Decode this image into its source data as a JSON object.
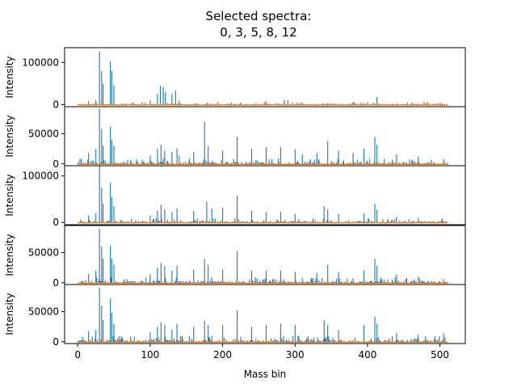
{
  "chart_data": {
    "type": "bar",
    "title_lines": [
      "Selected spectra:",
      "0, 3, 5, 8, 12"
    ],
    "xlabel": "Mass bin",
    "ylabel": "Intensity",
    "xlim": [
      -18,
      535
    ],
    "xticks": [
      0,
      100,
      200,
      300,
      400,
      500
    ],
    "n_bins": 512,
    "colors": {
      "bars": "#1f77b4",
      "baseline": "#ff7f0e",
      "axes": "#000000"
    },
    "panels": [
      {
        "spectrum": 0,
        "ylim": [
          -5000,
          135000
        ],
        "yticks": [
          0,
          100000
        ],
        "peaks": [
          [
            30,
            126000
          ],
          [
            33,
            80000
          ],
          [
            35,
            50000
          ],
          [
            45,
            103000
          ],
          [
            47,
            80000
          ],
          [
            50,
            45000
          ],
          [
            15,
            8000
          ],
          [
            25,
            10000
          ],
          [
            100,
            10000
          ],
          [
            110,
            25000
          ],
          [
            114,
            45000
          ],
          [
            118,
            42000
          ],
          [
            121,
            30000
          ],
          [
            130,
            25000
          ],
          [
            135,
            33000
          ],
          [
            140,
            10000
          ],
          [
            260,
            8000
          ],
          [
            285,
            12000
          ],
          [
            290,
            10000
          ],
          [
            310,
            5000
          ],
          [
            413,
            18000
          ]
        ],
        "noise": 6000,
        "seed": 3
      },
      {
        "spectrum": 3,
        "ylim": [
          -3000,
          95000
        ],
        "yticks": [
          0,
          50000
        ],
        "peaks": [
          [
            30,
            92000
          ],
          [
            33,
            58000
          ],
          [
            35,
            30000
          ],
          [
            45,
            62000
          ],
          [
            47,
            40000
          ],
          [
            50,
            30000
          ],
          [
            15,
            18000
          ],
          [
            25,
            25000
          ],
          [
            100,
            14000
          ],
          [
            110,
            25000
          ],
          [
            115,
            32000
          ],
          [
            120,
            22000
          ],
          [
            130,
            20000
          ],
          [
            137,
            26000
          ],
          [
            140,
            14000
          ],
          [
            160,
            20000
          ],
          [
            175,
            70000
          ],
          [
            180,
            30000
          ],
          [
            200,
            22000
          ],
          [
            220,
            45000
          ],
          [
            240,
            25000
          ],
          [
            260,
            28000
          ],
          [
            280,
            28000
          ],
          [
            300,
            24000
          ],
          [
            310,
            16000
          ],
          [
            330,
            18000
          ],
          [
            345,
            38000
          ],
          [
            360,
            22000
          ],
          [
            380,
            18000
          ],
          [
            395,
            25000
          ],
          [
            410,
            45000
          ],
          [
            413,
            32000
          ],
          [
            440,
            16000
          ],
          [
            470,
            12000
          ],
          [
            505,
            8000
          ]
        ],
        "noise": 9000,
        "seed": 7
      },
      {
        "spectrum": 5,
        "ylim": [
          -5000,
          122000
        ],
        "yticks": [
          0,
          100000
        ],
        "peaks": [
          [
            30,
            123000
          ],
          [
            33,
            75000
          ],
          [
            35,
            40000
          ],
          [
            45,
            85000
          ],
          [
            47,
            55000
          ],
          [
            50,
            35000
          ],
          [
            15,
            15000
          ],
          [
            25,
            20000
          ],
          [
            100,
            15000
          ],
          [
            110,
            25000
          ],
          [
            115,
            38000
          ],
          [
            120,
            28000
          ],
          [
            130,
            22000
          ],
          [
            137,
            30000
          ],
          [
            160,
            25000
          ],
          [
            178,
            45000
          ],
          [
            185,
            30000
          ],
          [
            200,
            32000
          ],
          [
            220,
            57000
          ],
          [
            240,
            25000
          ],
          [
            260,
            22000
          ],
          [
            280,
            22000
          ],
          [
            300,
            18000
          ],
          [
            340,
            35000
          ],
          [
            345,
            28000
          ],
          [
            360,
            18000
          ],
          [
            395,
            20000
          ],
          [
            410,
            40000
          ],
          [
            413,
            28000
          ],
          [
            440,
            12000
          ],
          [
            470,
            10000
          ]
        ],
        "noise": 9000,
        "seed": 11
      },
      {
        "spectrum": 8,
        "ylim": [
          -3000,
          95000
        ],
        "yticks": [
          0,
          50000
        ],
        "peaks": [
          [
            30,
            90000
          ],
          [
            33,
            60000
          ],
          [
            35,
            40000
          ],
          [
            45,
            62000
          ],
          [
            47,
            40000
          ],
          [
            50,
            30000
          ],
          [
            15,
            15000
          ],
          [
            25,
            20000
          ],
          [
            100,
            14000
          ],
          [
            110,
            25000
          ],
          [
            115,
            33000
          ],
          [
            120,
            28000
          ],
          [
            130,
            20000
          ],
          [
            137,
            28000
          ],
          [
            160,
            22000
          ],
          [
            175,
            40000
          ],
          [
            180,
            30000
          ],
          [
            200,
            22000
          ],
          [
            220,
            52000
          ],
          [
            240,
            20000
          ],
          [
            260,
            20000
          ],
          [
            280,
            20000
          ],
          [
            300,
            18000
          ],
          [
            330,
            16000
          ],
          [
            345,
            30000
          ],
          [
            360,
            18000
          ],
          [
            395,
            20000
          ],
          [
            410,
            40000
          ],
          [
            413,
            28000
          ],
          [
            440,
            14000
          ],
          [
            470,
            10000
          ],
          [
            505,
            6000
          ]
        ],
        "noise": 9000,
        "seed": 19
      },
      {
        "spectrum": 12,
        "ylim": [
          -3000,
          95000
        ],
        "yticks": [
          0,
          50000
        ],
        "peaks": [
          [
            30,
            90000
          ],
          [
            33,
            60000
          ],
          [
            35,
            36000
          ],
          [
            45,
            72000
          ],
          [
            47,
            48000
          ],
          [
            50,
            30000
          ],
          [
            15,
            18000
          ],
          [
            25,
            20000
          ],
          [
            100,
            16000
          ],
          [
            110,
            25000
          ],
          [
            115,
            32000
          ],
          [
            120,
            28000
          ],
          [
            130,
            20000
          ],
          [
            137,
            30000
          ],
          [
            160,
            25000
          ],
          [
            175,
            35000
          ],
          [
            180,
            28000
          ],
          [
            200,
            28000
          ],
          [
            220,
            52000
          ],
          [
            240,
            25000
          ],
          [
            260,
            28000
          ],
          [
            280,
            30000
          ],
          [
            300,
            28000
          ],
          [
            340,
            36000
          ],
          [
            345,
            28000
          ],
          [
            360,
            20000
          ],
          [
            395,
            28000
          ],
          [
            410,
            42000
          ],
          [
            413,
            30000
          ],
          [
            440,
            14000
          ],
          [
            470,
            12000
          ],
          [
            505,
            14000
          ]
        ],
        "noise": 10000,
        "seed": 23
      }
    ]
  }
}
